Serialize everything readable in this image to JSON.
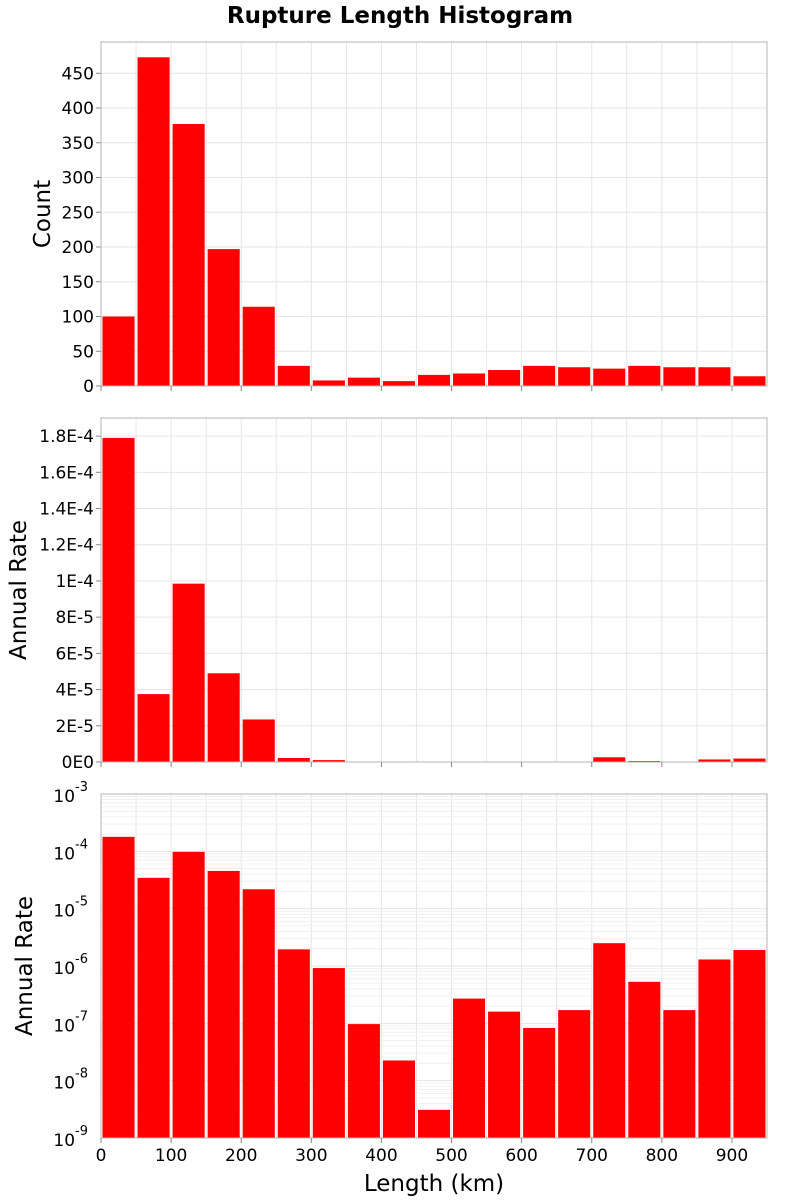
{
  "title": "Rupture Length Histogram",
  "colors": {
    "bar": "#ff0000"
  },
  "chart_data": [
    {
      "type": "bar",
      "panel": "count",
      "xlabel": "",
      "ylabel": "Count",
      "xlim": [
        0,
        950
      ],
      "ylim": [
        0,
        495
      ],
      "bin_width": 50,
      "bin_starts": [
        0,
        50,
        100,
        150,
        200,
        250,
        300,
        350,
        400,
        450,
        500,
        550,
        600,
        650,
        700,
        750,
        800,
        850,
        900
      ],
      "values": [
        100,
        473,
        377,
        197,
        114,
        29,
        8,
        12,
        7,
        16,
        18,
        23,
        29,
        27,
        25,
        29,
        27,
        27,
        14
      ],
      "yticks": [
        0,
        50,
        100,
        150,
        200,
        250,
        300,
        350,
        400,
        450
      ],
      "ytick_labels": [
        "0",
        "50",
        "100",
        "150",
        "200",
        "250",
        "300",
        "350",
        "400",
        "450"
      ]
    },
    {
      "type": "bar",
      "panel": "rate-linear",
      "xlabel": "",
      "ylabel": "Annual Rate",
      "xlim": [
        0,
        950
      ],
      "ylim": [
        0,
        0.00019
      ],
      "bin_width": 50,
      "bin_starts": [
        0,
        50,
        100,
        150,
        200,
        250,
        300,
        350,
        400,
        450,
        500,
        550,
        600,
        650,
        700,
        750,
        800,
        850,
        900
      ],
      "values": [
        0.000179,
        3.75e-05,
        9.85e-05,
        4.9e-05,
        2.35e-05,
        2.2e-06,
        1.05e-06,
        1e-07,
        2.2e-08,
        3e-09,
        2.8e-07,
        1.7e-07,
        9e-08,
        1.8e-07,
        2.6e-06,
        5.5e-07,
        1.8e-07,
        1.4e-06,
        1.9e-06
      ],
      "yticks": [
        0,
        2e-05,
        4e-05,
        6e-05,
        8e-05,
        0.0001,
        0.00012,
        0.00014,
        0.00016,
        0.00018
      ],
      "ytick_labels": [
        "0E0",
        "2E-5",
        "4E-5",
        "6E-5",
        "8E-5",
        "1E-4",
        "1.2E-4",
        "1.4E-4",
        "1.6E-4",
        "1.8E-4"
      ]
    },
    {
      "type": "bar",
      "panel": "rate-log",
      "xlabel": "Length (km)",
      "ylabel": "Annual Rate",
      "yscale": "log",
      "xlim": [
        0,
        950
      ],
      "ylim": [
        1e-09,
        0.001
      ],
      "bin_width": 50,
      "bin_starts": [
        0,
        50,
        100,
        150,
        200,
        250,
        300,
        350,
        400,
        450,
        500,
        550,
        600,
        650,
        700,
        750,
        800,
        850,
        900
      ],
      "values": [
        0.000179,
        3.45e-05,
        9.8e-05,
        4.55e-05,
        2.18e-05,
        1.95e-06,
        9.2e-07,
        9.7e-08,
        2.25e-08,
        3.1e-09,
        2.7e-07,
        1.6e-07,
        8.3e-08,
        1.7e-07,
        2.5e-06,
        5.3e-07,
        1.7e-07,
        1.3e-06,
        1.9e-06
      ],
      "ytick_bases": [
        "10",
        "10",
        "10",
        "10",
        "10",
        "10",
        "10"
      ],
      "ytick_exponents": [
        "-9",
        "-8",
        "-7",
        "-6",
        "-5",
        "-4",
        "-3"
      ],
      "xticks": [
        0,
        100,
        200,
        300,
        400,
        500,
        600,
        700,
        800,
        900
      ],
      "xtick_labels": [
        "0",
        "100",
        "200",
        "300",
        "400",
        "500",
        "600",
        "700",
        "800",
        "900"
      ]
    }
  ]
}
